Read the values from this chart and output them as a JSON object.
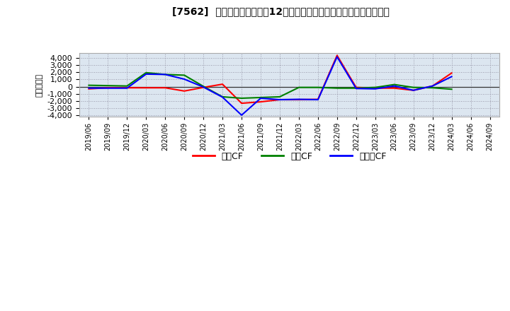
{
  "title": "[7562]  キャッシュフローの12か月移動合計の対前年同期増減額の推移",
  "ylabel": "（百万円）",
  "background_color": "#ffffff",
  "plot_bg_color": "#dce6f0",
  "grid_color": "#9999aa",
  "ylim": [
    -4200,
    4700
  ],
  "yticks": [
    -4000,
    -3000,
    -2000,
    -1000,
    0,
    1000,
    2000,
    3000,
    4000
  ],
  "x_labels": [
    "2019/06",
    "2019/09",
    "2019/12",
    "2020/03",
    "2020/06",
    "2020/09",
    "2020/12",
    "2021/03",
    "2021/06",
    "2021/09",
    "2021/12",
    "2022/03",
    "2022/06",
    "2022/09",
    "2022/12",
    "2023/03",
    "2023/06",
    "2023/09",
    "2023/12",
    "2024/03",
    "2024/06",
    "2024/09"
  ],
  "series": {
    "営業CF": {
      "color": "#ff0000",
      "values": [
        -300,
        -150,
        -150,
        -150,
        -150,
        -600,
        -100,
        350,
        -2300,
        -2100,
        -1800,
        -1800,
        -1750,
        4350,
        -100,
        -200,
        -200,
        -500,
        100,
        1900,
        null,
        null
      ]
    },
    "投資CF": {
      "color": "#008000",
      "values": [
        200,
        150,
        100,
        1950,
        1700,
        1600,
        50,
        -1400,
        -1600,
        -1500,
        -1400,
        -100,
        -100,
        -200,
        -200,
        -100,
        300,
        -100,
        -150,
        -350,
        null,
        null
      ]
    },
    "フリーCF": {
      "color": "#0000ff",
      "values": [
        -200,
        -200,
        -200,
        1750,
        1700,
        1050,
        -50,
        -1450,
        -3950,
        -1600,
        -1800,
        -1750,
        -1800,
        4150,
        -250,
        -300,
        100,
        -500,
        100,
        1400,
        null,
        null
      ]
    }
  },
  "legend_labels": [
    "営業CF",
    "投資CF",
    "フリーCF"
  ],
  "legend_colors": [
    "#ff0000",
    "#008000",
    "#0000ff"
  ]
}
